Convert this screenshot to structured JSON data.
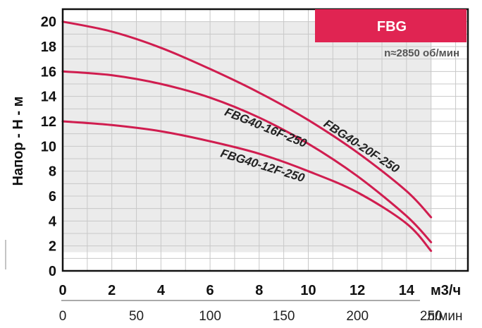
{
  "chart_data": {
    "type": "line",
    "badge": "FBG",
    "speed_note": "n≈2850 об/мин",
    "ylabel": "Напор - Н - м",
    "x_unit_primary": "м3/ч",
    "x_unit_secondary": "л/мин",
    "xlim": [
      0,
      16.5
    ],
    "ylim": [
      0,
      21
    ],
    "x_ticks": [
      0,
      2,
      4,
      6,
      8,
      10,
      12,
      14
    ],
    "y_ticks": [
      0,
      2,
      4,
      6,
      8,
      10,
      12,
      14,
      16,
      18,
      20
    ],
    "x2_ticks": [
      0,
      50,
      100,
      150,
      200,
      250
    ],
    "grid": true,
    "operating_range": {
      "x": [
        0,
        15
      ],
      "y": [
        1.5,
        20
      ]
    },
    "series": [
      {
        "name": "FBG40-20F-250",
        "x": [
          0,
          2,
          4,
          6,
          8,
          10,
          12,
          14,
          15
        ],
        "y": [
          20,
          19.2,
          17.9,
          16.2,
          14.3,
          12.1,
          9.5,
          6.4,
          4.3
        ]
      },
      {
        "name": "FBG40-16F-250",
        "x": [
          0,
          2,
          4,
          6,
          8,
          10,
          12,
          14,
          15
        ],
        "y": [
          16,
          15.7,
          15.0,
          13.9,
          12.3,
          10.2,
          7.6,
          4.4,
          2.3
        ]
      },
      {
        "name": "FBG40-12F-250",
        "x": [
          0,
          2,
          4,
          6,
          8,
          10,
          12,
          14,
          15
        ],
        "y": [
          12,
          11.7,
          11.2,
          10.4,
          9.4,
          8.0,
          6.3,
          3.8,
          1.6
        ]
      }
    ]
  },
  "colors": {
    "curve": "#d01d4f",
    "badge_fill": "#e02452",
    "range_fill": "#ebebeb",
    "grid": "#c8c8c8",
    "axis": "#111111"
  }
}
